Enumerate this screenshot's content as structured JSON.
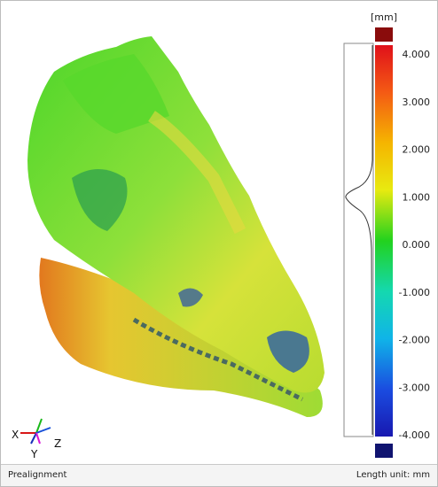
{
  "scale": {
    "unit": "[mm]",
    "labels": [
      "4.000",
      "3.000",
      "2.000",
      "1.000",
      "0.000",
      "-1.000",
      "-2.000",
      "-3.000",
      "-4.000"
    ]
  },
  "axes": {
    "x": "X",
    "y": "Y",
    "z": "Z"
  },
  "status_bar": {
    "left": "Prealignment",
    "right": "Length unit: mm"
  }
}
